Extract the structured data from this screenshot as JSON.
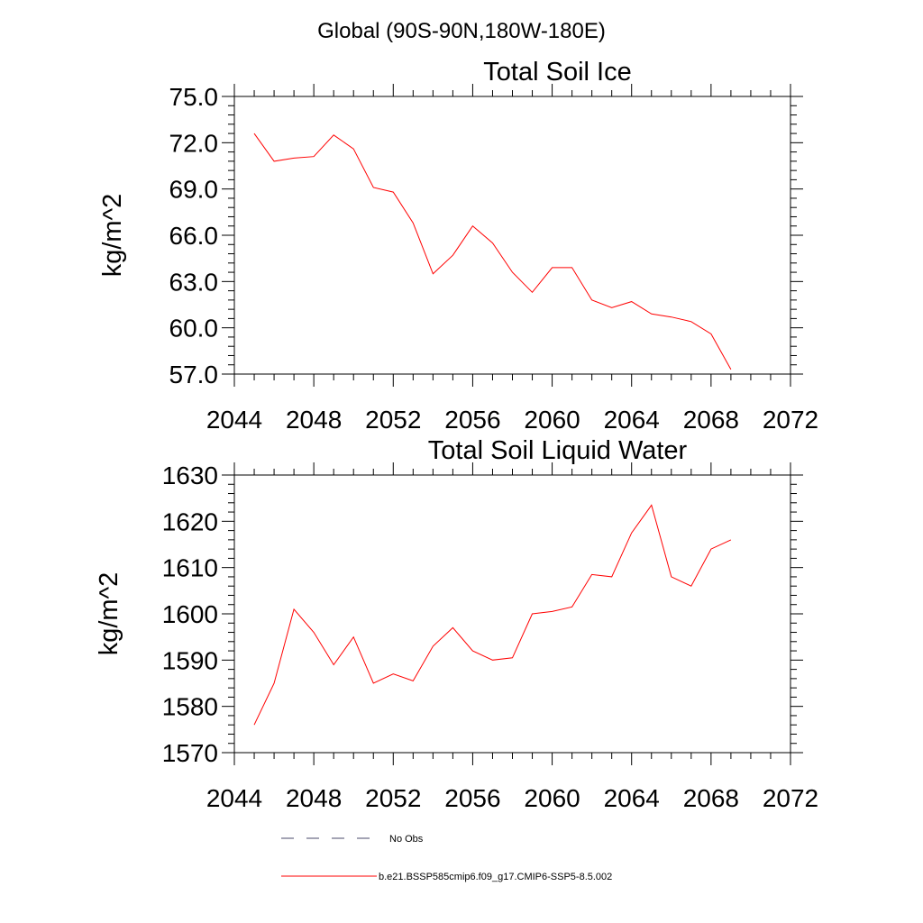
{
  "figure": {
    "header": "Global (90S-90N,180W-180E)"
  },
  "chart_data": [
    {
      "type": "line",
      "title": "Total Soil Ice",
      "ylabel": "kg/m^2",
      "xlabel": "",
      "xlim": [
        2044,
        2072
      ],
      "ylim": [
        57,
        75
      ],
      "xticks": [
        2044,
        2048,
        2052,
        2056,
        2060,
        2064,
        2068,
        2072
      ],
      "xtick_labels": [
        "2044",
        "2048",
        "2052",
        "2056",
        "2060",
        "2064",
        "2068",
        "2072"
      ],
      "yticks": [
        57,
        60,
        63,
        66,
        69,
        72,
        75
      ],
      "ytick_labels": [
        "57.0",
        "60.0",
        "63.0",
        "66.0",
        "69.0",
        "72.0",
        "75.0"
      ],
      "grid": false,
      "series": [
        {
          "name": "b.e21.BSSP585cmip6.f09_g17.CMIP6-SSP5-8.5.002",
          "color": "#ff0000",
          "x": [
            2045,
            2046,
            2047,
            2048,
            2049,
            2050,
            2051,
            2052,
            2053,
            2054,
            2055,
            2056,
            2057,
            2058,
            2059,
            2060,
            2061,
            2062,
            2063,
            2064,
            2065,
            2066,
            2067,
            2068,
            2069
          ],
          "y": [
            72.6,
            70.8,
            71.0,
            71.1,
            72.5,
            71.6,
            69.1,
            68.8,
            66.8,
            63.5,
            64.7,
            66.6,
            65.5,
            63.6,
            62.3,
            63.9,
            63.9,
            61.8,
            61.3,
            61.7,
            60.9,
            60.7,
            60.4,
            59.6,
            57.3
          ]
        }
      ]
    },
    {
      "type": "line",
      "title": "Total Soil Liquid Water",
      "ylabel": "kg/m^2",
      "xlabel": "",
      "xlim": [
        2044,
        2072
      ],
      "ylim": [
        1570,
        1630
      ],
      "xticks": [
        2044,
        2048,
        2052,
        2056,
        2060,
        2064,
        2068,
        2072
      ],
      "xtick_labels": [
        "2044",
        "2048",
        "2052",
        "2056",
        "2060",
        "2064",
        "2068",
        "2072"
      ],
      "yticks": [
        1570,
        1580,
        1590,
        1600,
        1610,
        1620,
        1630
      ],
      "ytick_labels": [
        "1570",
        "1580",
        "1590",
        "1600",
        "1610",
        "1620",
        "1630"
      ],
      "grid": false,
      "series": [
        {
          "name": "b.e21.BSSP585cmip6.f09_g17.CMIP6-SSP5-8.5.002",
          "color": "#ff0000",
          "x": [
            2045,
            2046,
            2047,
            2048,
            2049,
            2050,
            2051,
            2052,
            2053,
            2054,
            2055,
            2056,
            2057,
            2058,
            2059,
            2060,
            2061,
            2062,
            2063,
            2064,
            2065,
            2066,
            2067,
            2068,
            2069
          ],
          "y": [
            1576,
            1585,
            1601,
            1596,
            1589,
            1595,
            1585,
            1587,
            1585.5,
            1593,
            1597,
            1592,
            1590,
            1590.5,
            1600,
            1600.5,
            1601.5,
            1608.5,
            1608,
            1617.5,
            1623.5,
            1608,
            1606,
            1614,
            1616
          ]
        }
      ]
    }
  ],
  "legend": {
    "placement": "bottom",
    "items": [
      {
        "label": "No Obs",
        "style": "dashed",
        "color": "#4a4a6a"
      },
      {
        "label": "b.e21.BSSP585cmip6.f09_g17.CMIP6-SSP5-8.5.002",
        "style": "solid",
        "color": "#ff0000"
      }
    ]
  }
}
